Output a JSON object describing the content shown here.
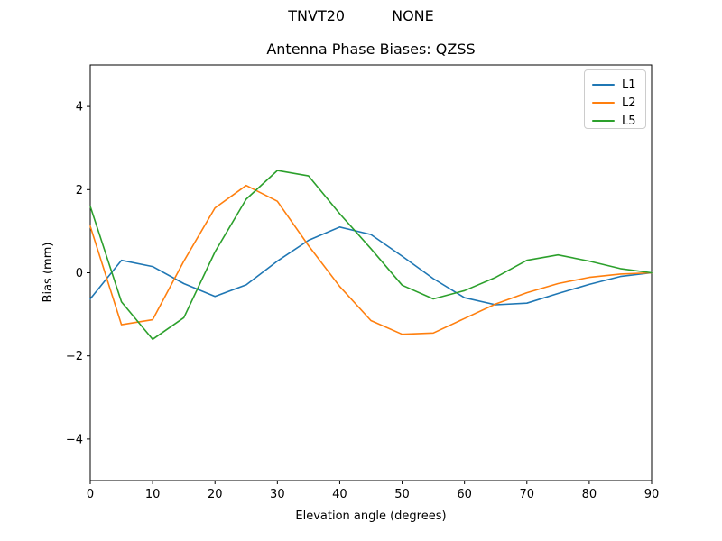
{
  "figure": {
    "suptitle_left": "TNVT20",
    "suptitle_right": "NONE"
  },
  "chart_data": {
    "type": "line",
    "title": "Antenna Phase Biases: QZSS",
    "xlabel": "Elevation angle (degrees)",
    "ylabel": "Bias (mm)",
    "xlim": [
      0,
      90
    ],
    "ylim": [
      -5,
      5
    ],
    "x_ticks": [
      0,
      10,
      20,
      30,
      40,
      50,
      60,
      70,
      80,
      90
    ],
    "y_ticks": [
      -4,
      -2,
      0,
      2,
      4
    ],
    "grid": false,
    "legend": {
      "position": "upper right",
      "entries": [
        "L1",
        "L2",
        "L5"
      ]
    },
    "x": [
      0,
      5,
      10,
      15,
      20,
      25,
      30,
      35,
      40,
      45,
      50,
      55,
      60,
      65,
      70,
      75,
      80,
      85,
      90
    ],
    "series": [
      {
        "name": "L1",
        "color": "#1f77b4",
        "values": [
          -0.63,
          0.3,
          0.15,
          -0.26,
          -0.57,
          -0.29,
          0.28,
          0.78,
          1.1,
          0.92,
          0.4,
          -0.14,
          -0.6,
          -0.77,
          -0.73,
          -0.5,
          -0.28,
          -0.09,
          0.0
        ]
      },
      {
        "name": "L2",
        "color": "#ff7f0e",
        "values": [
          1.12,
          -1.25,
          -1.13,
          0.28,
          1.56,
          2.1,
          1.72,
          0.65,
          -0.33,
          -1.15,
          -1.48,
          -1.45,
          -1.1,
          -0.75,
          -0.48,
          -0.26,
          -0.11,
          -0.03,
          0.0
        ]
      },
      {
        "name": "L5",
        "color": "#2ca02c",
        "values": [
          1.6,
          -0.7,
          -1.6,
          -1.08,
          0.5,
          1.77,
          2.46,
          2.33,
          1.42,
          0.58,
          -0.3,
          -0.63,
          -0.43,
          -0.11,
          0.3,
          0.43,
          0.28,
          0.1,
          0.0
        ]
      }
    ]
  }
}
